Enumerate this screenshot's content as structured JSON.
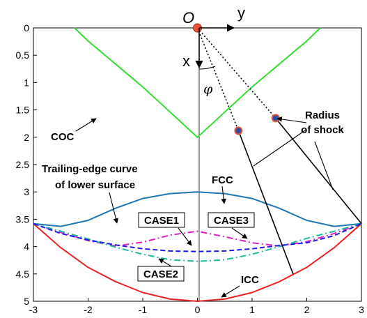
{
  "chart_data": {
    "type": "line",
    "x_axis": {
      "range": [
        -3,
        3
      ],
      "ticks": [
        "-3",
        "-2",
        "-1",
        "0",
        "1",
        "2",
        "3"
      ]
    },
    "y_axis": {
      "range": [
        0,
        5
      ],
      "inverted": true,
      "ticks": [
        "0",
        "0.5",
        "1",
        "1.5",
        "2",
        "2.5",
        "3",
        "3.5",
        "4",
        "4.5",
        "5"
      ]
    },
    "colors": {
      "COC": "#33dd33",
      "FCC": "#1f77b4",
      "ICC": "#ee2222",
      "CASE1": "#e01fc0",
      "CASE2": "#1abc9c",
      "CASE3": "#1a1aee",
      "rays": "#000000",
      "origin": "#e8533a",
      "points": "#2d4ea8"
    },
    "series": [
      {
        "key": "COC",
        "style": "solid",
        "x": [
          -2.25,
          -2.0,
          -1.5,
          -1.0,
          -0.5,
          0.0,
          0.5,
          1.0,
          1.5,
          2.0,
          2.25
        ],
        "y": [
          0.0,
          0.24,
          0.66,
          1.08,
          1.54,
          2.0,
          1.54,
          1.08,
          0.66,
          0.24,
          0.0
        ]
      },
      {
        "key": "FCC",
        "style": "solid",
        "x": [
          -3.0,
          -2.5,
          -2.0,
          -1.5,
          -1.0,
          -0.5,
          0.0,
          0.5,
          1.0,
          1.5,
          2.0,
          2.5,
          3.0
        ],
        "y": [
          3.58,
          3.63,
          3.52,
          3.3,
          3.12,
          3.03,
          3.0,
          3.03,
          3.12,
          3.3,
          3.52,
          3.63,
          3.58
        ]
      },
      {
        "key": "ICC",
        "style": "solid",
        "x": [
          -3.0,
          -2.5,
          -2.0,
          -1.5,
          -1.0,
          -0.5,
          0.0,
          0.5,
          1.0,
          1.5,
          2.0,
          2.5,
          3.0
        ],
        "y": [
          3.58,
          4.02,
          4.38,
          4.64,
          4.84,
          4.96,
          5.0,
          4.96,
          4.84,
          4.64,
          4.38,
          4.02,
          3.58
        ]
      },
      {
        "key": "CASE1",
        "style": "dashdot",
        "x": [
          -3.0,
          -2.5,
          -2.0,
          -1.5,
          -1.0,
          -0.5,
          0.0,
          0.5,
          1.0,
          1.5,
          2.0,
          2.5,
          3.0
        ],
        "y": [
          3.58,
          3.74,
          3.89,
          3.99,
          3.92,
          3.79,
          3.72,
          3.82,
          3.93,
          3.99,
          3.91,
          3.76,
          3.58
        ]
      },
      {
        "key": "CASE2",
        "style": "dashdot",
        "x": [
          -3.0,
          -2.5,
          -2.0,
          -1.5,
          -1.0,
          -0.5,
          0.0,
          0.5,
          1.0,
          1.5,
          2.0,
          2.5,
          3.0
        ],
        "y": [
          3.58,
          3.72,
          3.86,
          4.01,
          4.14,
          4.24,
          4.27,
          4.24,
          4.14,
          4.0,
          3.85,
          3.72,
          3.58
        ]
      },
      {
        "key": "CASE3",
        "style": "dashed",
        "x": [
          -3.0,
          -2.5,
          -2.0,
          -1.5,
          -1.0,
          -0.5,
          0.0,
          0.5,
          1.0,
          1.5,
          2.0,
          2.5,
          3.0
        ],
        "y": [
          3.58,
          3.76,
          3.88,
          3.97,
          4.04,
          4.08,
          4.09,
          4.08,
          4.04,
          3.98,
          3.93,
          3.8,
          3.58
        ]
      }
    ],
    "rays": [
      {
        "style": "dotted",
        "x": [
          0.0,
          0.75
        ],
        "y": [
          0.0,
          1.88
        ]
      },
      {
        "style": "dotted",
        "x": [
          0.0,
          1.43
        ],
        "y": [
          0.0,
          1.65
        ]
      },
      {
        "style": "solid",
        "x": [
          0.75,
          1.75
        ],
        "y": [
          1.88,
          4.5
        ]
      },
      {
        "style": "solid",
        "x": [
          1.43,
          3.0
        ],
        "y": [
          1.65,
          3.58
        ]
      }
    ],
    "points": [
      {
        "x": 0.75,
        "y": 1.88
      },
      {
        "x": 1.43,
        "y": 1.65
      }
    ],
    "origin": {
      "x": 0.0,
      "y": 0.0
    }
  },
  "labels": {
    "origin": "O",
    "axis_y": "y",
    "axis_x": "x",
    "angle": "φ",
    "coc": "COC",
    "radius_line1": "Radius",
    "radius_line2": "of shock",
    "trailing_line1": "Trailing-edge curve",
    "trailing_line2": "of lower surface",
    "fcc": "FCC",
    "case1": "CASE1",
    "case3": "CASE3",
    "case2": "CASE2",
    "icc": "ICC"
  }
}
